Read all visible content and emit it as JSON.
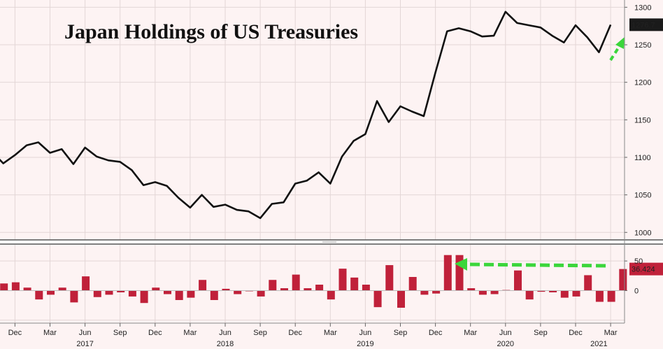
{
  "chart_data": [
    {
      "type": "line",
      "title": "Japan Holdings of US Treasuries",
      "xlabel": "",
      "ylabel": "",
      "ylim": [
        990,
        1305
      ],
      "yticks": [
        1000,
        1050,
        1100,
        1150,
        1200,
        1250,
        1300
      ],
      "last_value_label": "1276.7",
      "months": [
        "Oct 2016",
        "Nov 2016",
        "Dec 2016",
        "Jan 2017",
        "Feb 2017",
        "Mar 2017",
        "Apr 2017",
        "May 2017",
        "Jun 2017",
        "Jul 2017",
        "Aug 2017",
        "Sep 2017",
        "Oct 2017",
        "Nov 2017",
        "Dec 2017",
        "Jan 2018",
        "Feb 2018",
        "Mar 2018",
        "Apr 2018",
        "May 2018",
        "Jun 2018",
        "Jul 2018",
        "Aug 2018",
        "Sep 2018",
        "Oct 2018",
        "Nov 2018",
        "Dec 2018",
        "Jan 2019",
        "Feb 2019",
        "Mar 2019",
        "Apr 2019",
        "May 2019",
        "Jun 2019",
        "Jul 2019",
        "Aug 2019",
        "Sep 2019",
        "Oct 2019",
        "Nov 2019",
        "Dec 2019",
        "Jan 2020",
        "Feb 2020",
        "Mar 2020",
        "Apr 2020",
        "May 2020",
        "Jun 2020",
        "Jul 2020",
        "Aug 2020",
        "Sep 2020",
        "Oct 2020",
        "Nov 2020",
        "Dec 2020",
        "Jan 2021",
        "Feb 2021",
        "Mar 2021",
        "Apr 2021"
      ],
      "values": [
        1108,
        1092,
        1103,
        1116,
        1120,
        1106,
        1111,
        1091,
        1113,
        1101,
        1096,
        1094,
        1083,
        1063,
        1067,
        1062,
        1046,
        1033,
        1050,
        1034,
        1037,
        1030,
        1028,
        1019,
        1038,
        1040,
        1065,
        1069,
        1080,
        1065,
        1101,
        1122,
        1131,
        1175,
        1147,
        1168,
        1161,
        1155,
        1213,
        1268,
        1272,
        1268,
        1261,
        1262,
        1294,
        1279,
        1276,
        1273,
        1262,
        1253,
        1276,
        1260,
        1240,
        1276.7,
        1276.7
      ]
    },
    {
      "type": "bar",
      "title": "",
      "ylim": [
        -55,
        75
      ],
      "yticks": [
        -50,
        0,
        50
      ],
      "last_value_label": "36.424",
      "values": [
        -18,
        12,
        14,
        5,
        -15,
        -7,
        5,
        -20,
        24,
        -11,
        -7,
        -3,
        -10,
        -21,
        5,
        -6,
        -16,
        -12,
        18,
        -16,
        3,
        -6,
        -1,
        -10,
        18,
        4,
        27,
        4,
        10,
        -15,
        37,
        22,
        10,
        -28,
        43,
        -29,
        23,
        -7,
        -5,
        60,
        60,
        4,
        -7,
        -6,
        1,
        34,
        -15,
        -2,
        -3,
        -12,
        -10,
        26,
        -19,
        -19,
        36.424
      ],
      "x_tick_labels": [
        "Dec",
        "Mar",
        "Jun",
        "Sep",
        "Dec",
        "Mar",
        "Jun",
        "Sep",
        "Dec",
        "Mar",
        "Jun",
        "Sep",
        "Dec",
        "Mar",
        "Jun",
        "Sep",
        "Dec",
        "Mar"
      ],
      "year_labels": [
        "2017",
        "2018",
        "2019",
        "2020",
        "2021"
      ]
    }
  ],
  "colors": {
    "background": "#fdf3f3",
    "line": "#111111",
    "bar": "#c0213a",
    "arrow": "#3bd63b",
    "label_bg": "#1a1a1a",
    "bar_label_bg": "#c0213a"
  }
}
